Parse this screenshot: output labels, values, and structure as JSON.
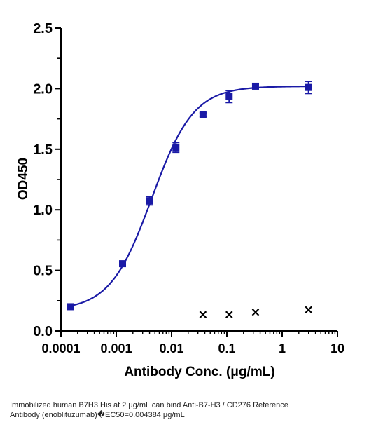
{
  "chart_data": {
    "type": "scatter",
    "xlabel": "Antibody Conc. (μg/mL)",
    "ylabel": "OD450",
    "xscale": "log",
    "xlim": [
      0.0001,
      10
    ],
    "ylim": [
      0,
      2.5
    ],
    "x_ticks": [
      "0.0001",
      "0.001",
      "0.01",
      "0.1",
      "1",
      "10"
    ],
    "y_ticks": [
      "0.0",
      "0.5",
      "1.0",
      "1.5",
      "2.0",
      "2.5"
    ],
    "grid": false,
    "series": [
      {
        "marker": "square",
        "color": "#1a1aa6",
        "points": [
          {
            "x": 0.00015,
            "y": 0.2,
            "err": 0.01
          },
          {
            "x": 0.0013,
            "y": 0.555,
            "err": 0.015
          },
          {
            "x": 0.004,
            "y": 1.075,
            "err": 0.035
          },
          {
            "x": 0.012,
            "y": 1.515,
            "err": 0.04
          },
          {
            "x": 0.037,
            "y": 1.785,
            "err": 0.015
          },
          {
            "x": 0.11,
            "y": 1.935,
            "err": 0.05
          },
          {
            "x": 0.33,
            "y": 2.02,
            "err": 0.02
          },
          {
            "x": 3.0,
            "y": 2.01,
            "err": 0.05
          }
        ],
        "fit": {
          "bottom": 0.17,
          "top": 2.02,
          "ec50": 0.004384,
          "hill": 1.15
        }
      },
      {
        "marker": "x",
        "color": "#000000",
        "points": [
          {
            "x": 0.037,
            "y": 0.135
          },
          {
            "x": 0.11,
            "y": 0.135
          },
          {
            "x": 0.33,
            "y": 0.155
          },
          {
            "x": 3.0,
            "y": 0.175
          }
        ]
      }
    ]
  },
  "caption": {
    "line1": "Immobilized human B7H3 His at 2  μg/mL can bind  Anti-B7-H3 / CD276 Reference",
    "line2": "Antibody (enoblituzumab)�EC50=0.004384 μg/mL"
  }
}
